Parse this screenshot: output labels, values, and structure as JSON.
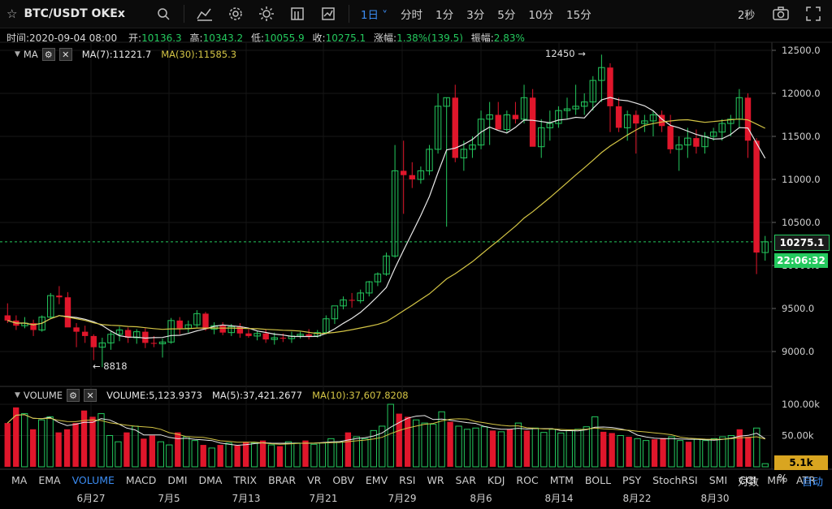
{
  "toolbar": {
    "symbol": "BTC/USDT OKEx",
    "intervals": [
      {
        "label": "1日",
        "active": true
      },
      {
        "label": "分时"
      },
      {
        "label": "1分"
      },
      {
        "label": "3分"
      },
      {
        "label": "5分"
      },
      {
        "label": "10分"
      },
      {
        "label": "15分"
      }
    ],
    "refresh_label": "2秒",
    "icons": [
      "star-icon",
      "search-icon",
      "chart-type-icon",
      "settings-icon",
      "theme-icon",
      "template-icon",
      "indicator-icon",
      "camera-icon",
      "fullscreen-icon"
    ]
  },
  "ohlc": {
    "time_label": "时间:",
    "time": "2020-09-04 08:00",
    "open_label": "开:",
    "open": "10136.3",
    "high_label": "高:",
    "high": "10343.2",
    "low_label": "低:",
    "low": "10055.9",
    "close_label": "收:",
    "close": "10275.1",
    "change_label": "涨幅:",
    "change": "1.38%(139.5)",
    "amplitude_label": "振幅:",
    "amplitude": "2.83%"
  },
  "main_legend": {
    "name": "MA",
    "ma7": "MA(7):11221.7",
    "ma30": "MA(30):11585.3"
  },
  "volume_legend": {
    "name": "VOLUME",
    "volume": "VOLUME:5,123.9373",
    "ma5": "MA(5):37,421.2677",
    "ma10": "MA(10):37,607.8208"
  },
  "price_axis": [
    "12500.0",
    "12000.0",
    "11500.0",
    "11000.0",
    "10500.0",
    "10000.0",
    "9500.0",
    "9000.0"
  ],
  "volume_axis": [
    "100.00k",
    "50.00k"
  ],
  "current_price": "10275.1",
  "countdown": "22:06:32",
  "current_volume": "5.1k",
  "high_marker": "12450 →",
  "low_marker": "← 8818",
  "dates": [
    "6月27",
    "7月5",
    "7月13",
    "7月21",
    "7月29",
    "8月6",
    "8月14",
    "8月22",
    "8月30"
  ],
  "indicators": [
    {
      "label": "MA"
    },
    {
      "label": "EMA"
    },
    {
      "label": "VOLUME",
      "active": true
    },
    {
      "label": "MACD"
    },
    {
      "label": "DMI"
    },
    {
      "label": "DMA"
    },
    {
      "label": "TRIX"
    },
    {
      "label": "BRAR"
    },
    {
      "label": "VR"
    },
    {
      "label": "OBV"
    },
    {
      "label": "EMV"
    },
    {
      "label": "RSI"
    },
    {
      "label": "WR"
    },
    {
      "label": "SAR"
    },
    {
      "label": "KDJ"
    },
    {
      "label": "ROC"
    },
    {
      "label": "MTM"
    },
    {
      "label": "BOLL"
    },
    {
      "label": "PSY"
    },
    {
      "label": "StochRSI"
    },
    {
      "label": "SMI"
    },
    {
      "label": "CCI",
      "bold": true
    },
    {
      "label": "MFI"
    },
    {
      "label": "ATR"
    }
  ],
  "right_controls": {
    "log": "对数",
    "percent": "%",
    "auto": "自动"
  },
  "colors": {
    "up": "#24c95e",
    "down": "#e0162b",
    "ma_short": "#e8e8e8",
    "ma_long": "#d4c545",
    "accent": "#3b8cf2"
  }
}
